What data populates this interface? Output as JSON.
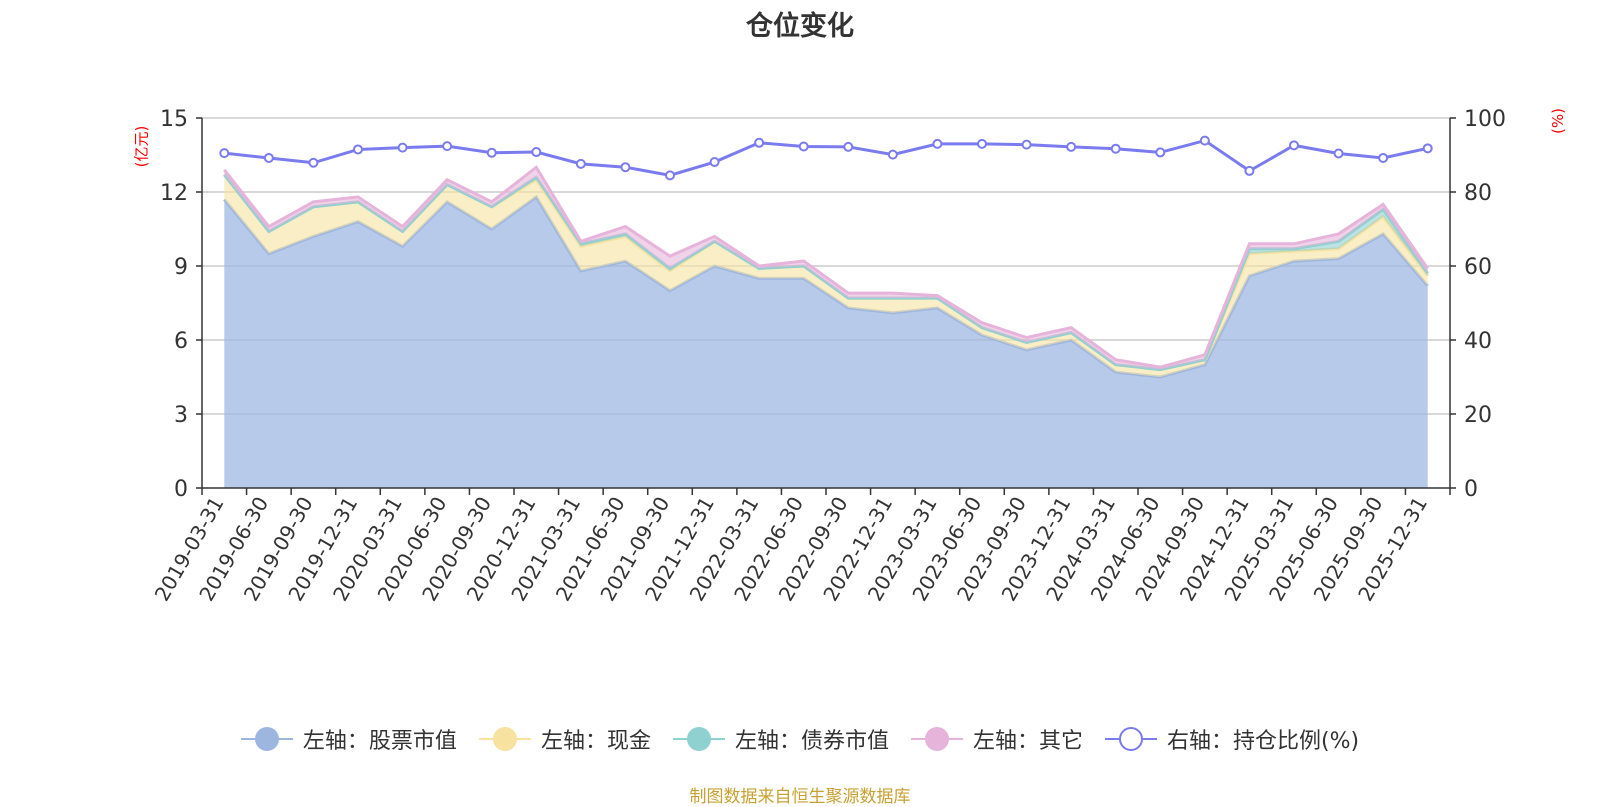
{
  "chart_data": {
    "type": "area",
    "title": "仓位变化",
    "ylabel_left": "(亿元)",
    "ylabel_right": "(%)",
    "ylim_left": [
      0,
      15
    ],
    "ylim_right": [
      0,
      100
    ],
    "yticks_left": [
      0,
      3,
      6,
      9,
      12,
      15
    ],
    "yticks_right": [
      0,
      20,
      40,
      60,
      80,
      100
    ],
    "categories": [
      "2019-03-31",
      "2019-06-30",
      "2019-09-30",
      "2019-12-31",
      "2020-03-31",
      "2020-06-30",
      "2020-09-30",
      "2020-12-31",
      "2021-03-31",
      "2021-06-30",
      "2021-09-30",
      "2021-12-31",
      "2022-03-31",
      "2022-06-30",
      "2022-09-30",
      "2022-12-31",
      "2023-03-31",
      "2023-06-30",
      "2023-09-30",
      "2023-12-31",
      "2024-03-31",
      "2024-06-30",
      "2024-09-30",
      "2024-12-31",
      "2025-03-31",
      "2025-06-30",
      "2025-09-30",
      "2025-12-31"
    ],
    "series": [
      {
        "name": "左轴：股票市值",
        "axis": "left",
        "stacked": true,
        "color": "#9db6e0",
        "values": [
          11.7,
          9.5,
          10.2,
          10.8,
          9.8,
          11.6,
          10.5,
          11.8,
          8.8,
          9.2,
          8.0,
          9.0,
          8.5,
          8.5,
          7.3,
          7.1,
          7.3,
          6.2,
          5.6,
          6.0,
          4.7,
          4.5,
          5.0,
          8.6,
          9.2,
          9.3,
          10.3,
          8.2
        ]
      },
      {
        "name": "左轴：现金",
        "axis": "left",
        "stacked": true,
        "color": "#f7e2a0",
        "values": [
          1.0,
          0.9,
          1.2,
          0.8,
          0.6,
          0.7,
          0.9,
          0.7,
          1.0,
          1.0,
          0.8,
          1.0,
          0.4,
          0.5,
          0.4,
          0.6,
          0.4,
          0.3,
          0.3,
          0.3,
          0.3,
          0.3,
          0.2,
          0.9,
          0.4,
          0.4,
          0.7,
          0.4
        ]
      },
      {
        "name": "左轴：债券市值",
        "axis": "left",
        "stacked": true,
        "color": "#8fd0d0",
        "values": [
          0.0,
          0.0,
          0.0,
          0.0,
          0.0,
          0.0,
          0.0,
          0.1,
          0.1,
          0.1,
          0.1,
          0.0,
          0.0,
          0.0,
          0.0,
          0.0,
          0.0,
          0.0,
          0.0,
          0.0,
          0.0,
          0.0,
          0.0,
          0.2,
          0.1,
          0.3,
          0.3,
          0.1
        ]
      },
      {
        "name": "左轴：其它",
        "axis": "left",
        "stacked": true,
        "color": "#e6b4da",
        "values": [
          0.2,
          0.2,
          0.2,
          0.2,
          0.2,
          0.2,
          0.2,
          0.4,
          0.1,
          0.3,
          0.5,
          0.2,
          0.1,
          0.2,
          0.2,
          0.2,
          0.1,
          0.2,
          0.2,
          0.2,
          0.2,
          0.1,
          0.2,
          0.2,
          0.2,
          0.3,
          0.2,
          0.2
        ]
      },
      {
        "name": "右轴：持仓比例(%)",
        "axis": "right",
        "stacked": false,
        "color": "#7b7bf0",
        "values": [
          90.5,
          89.2,
          87.9,
          91.5,
          92.0,
          92.4,
          90.6,
          90.8,
          87.6,
          86.7,
          84.5,
          88.1,
          93.3,
          92.3,
          92.2,
          90.1,
          93.0,
          93.0,
          92.8,
          92.2,
          91.7,
          90.7,
          93.9,
          85.7,
          92.6,
          90.4,
          89.2,
          91.8
        ]
      }
    ],
    "legend_position": "bottom-center",
    "grid": true
  },
  "legend": [
    {
      "label": "左轴：股票市值",
      "color": "#9db6e0",
      "filled": true
    },
    {
      "label": "左轴：现金",
      "color": "#f7e2a0",
      "filled": true
    },
    {
      "label": "左轴：债券市值",
      "color": "#8fd0d0",
      "filled": true
    },
    {
      "label": "左轴：其它",
      "color": "#e6b4da",
      "filled": true
    },
    {
      "label": "右轴：持仓比例(%)",
      "color": "#7b7bf0",
      "filled": false
    }
  ],
  "source_text": "制图数据来自恒生聚源数据库"
}
